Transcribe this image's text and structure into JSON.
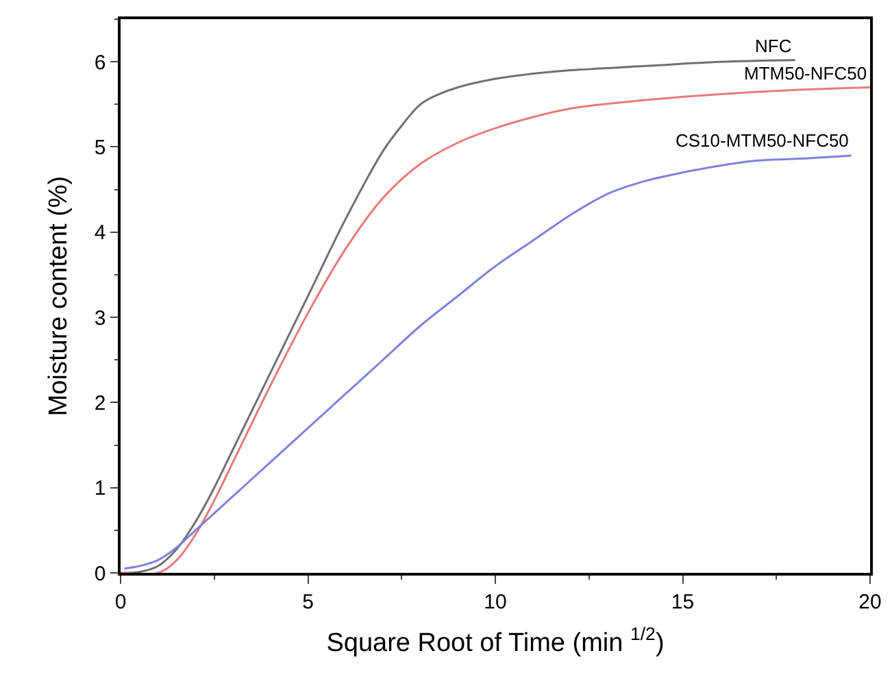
{
  "chart_data": {
    "type": "line",
    "xlabel": "Square Root of Time (min $^{1/2}$)",
    "ylabel": "Moisture content (%)",
    "xlim": [
      0,
      20
    ],
    "xticks": [
      0,
      5,
      10,
      15,
      20
    ],
    "ylim": [
      0,
      6.5
    ],
    "yticks": [
      0,
      1,
      2,
      3,
      4,
      5,
      6
    ],
    "legend": false,
    "series": [
      {
        "name": "NFC",
        "color": "#707070",
        "x": [
          0,
          0.5,
          1,
          1.5,
          2,
          2.5,
          3,
          4,
          5,
          6,
          7,
          7.5,
          8,
          8.5,
          9,
          10,
          11,
          12,
          14,
          16,
          18
        ],
        "values": [
          0,
          0.01,
          0.08,
          0.28,
          0.6,
          1.0,
          1.45,
          2.35,
          3.25,
          4.15,
          4.95,
          5.25,
          5.5,
          5.62,
          5.7,
          5.8,
          5.86,
          5.9,
          5.95,
          6.0,
          6.02
        ]
      },
      {
        "name": "MTM50-NFC50",
        "color": "#e87a7a",
        "x": [
          0,
          1,
          1.5,
          2,
          2.5,
          3,
          4,
          5,
          6,
          7,
          8,
          9,
          10,
          11,
          12,
          14,
          16,
          18,
          20
        ],
        "values": [
          0,
          0,
          0.15,
          0.45,
          0.85,
          1.3,
          2.2,
          3.05,
          3.8,
          4.4,
          4.8,
          5.05,
          5.22,
          5.35,
          5.45,
          5.55,
          5.62,
          5.67,
          5.7
        ]
      },
      {
        "name": "CS10-MTM50-NFC50",
        "color": "#8080e0",
        "x": [
          0.1,
          0.5,
          1,
          1.5,
          2,
          3,
          4,
          5,
          6,
          7,
          8,
          9,
          10,
          11,
          12,
          13,
          14,
          15,
          16,
          17,
          18,
          19.5
        ],
        "values": [
          0.05,
          0.08,
          0.15,
          0.3,
          0.5,
          0.9,
          1.3,
          1.7,
          2.1,
          2.5,
          2.9,
          3.25,
          3.6,
          3.9,
          4.2,
          4.45,
          4.6,
          4.7,
          4.78,
          4.84,
          4.86,
          4.9
        ]
      }
    ]
  }
}
